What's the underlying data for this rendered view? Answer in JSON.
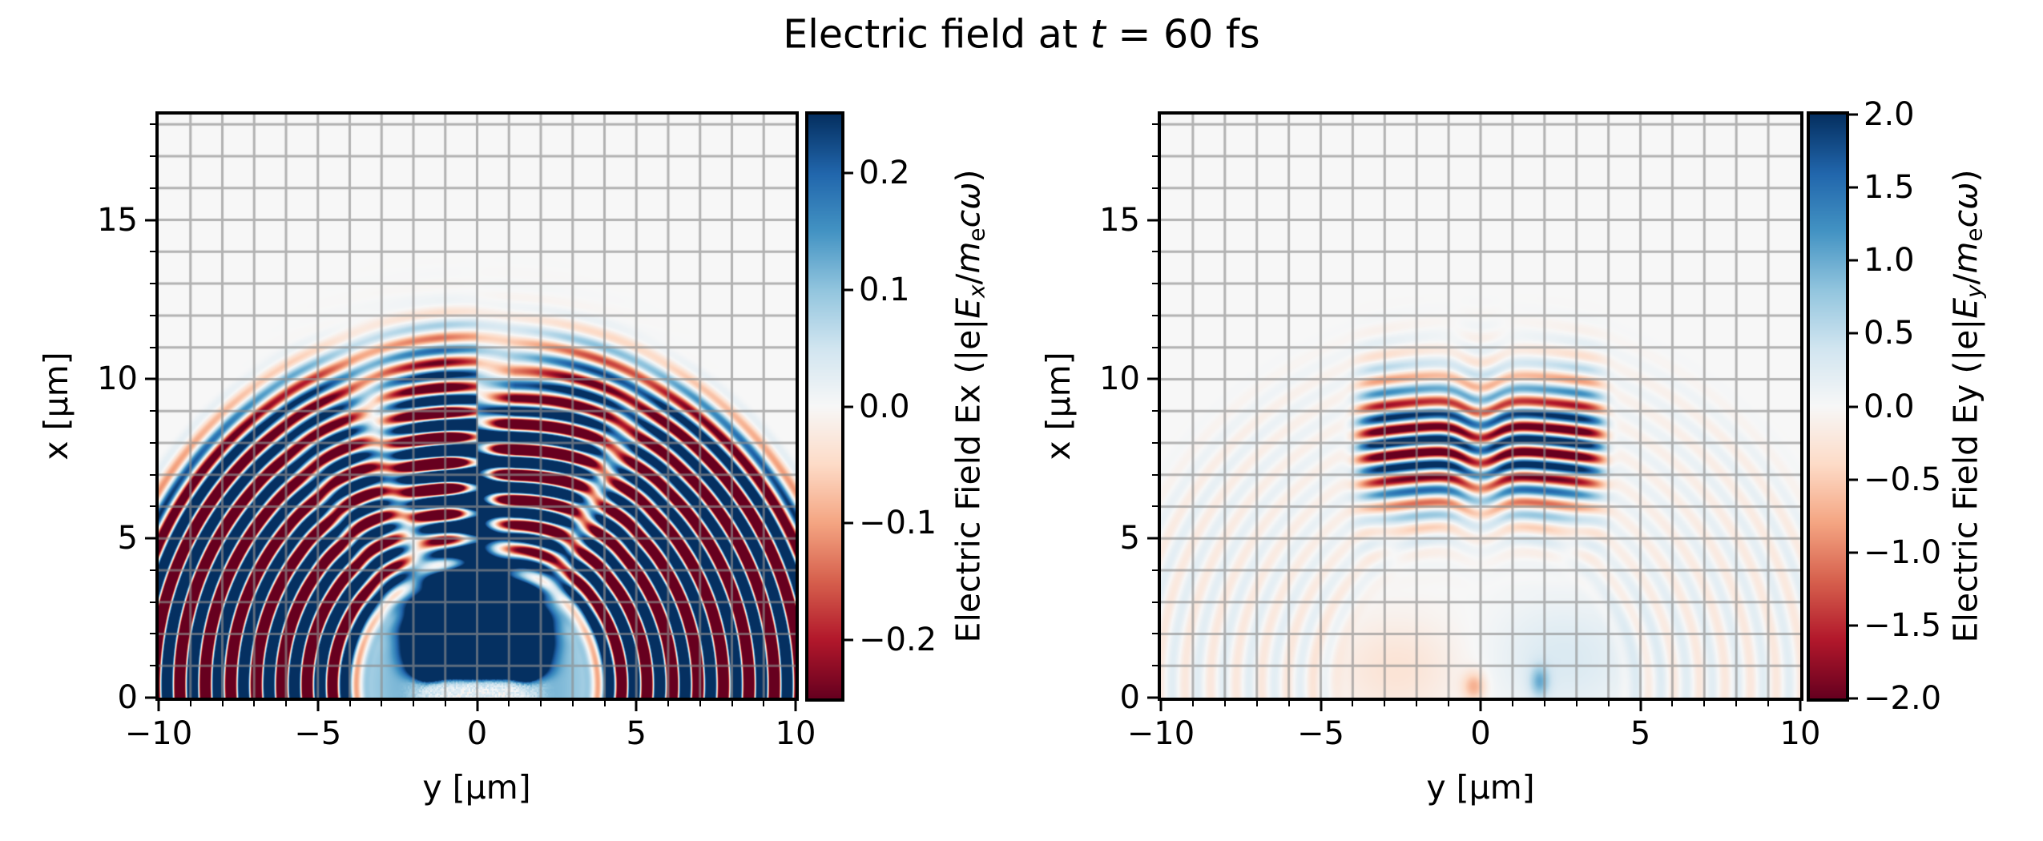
{
  "title": "Electric field at t = 60 fs",
  "title_segments": [
    {
      "t": "Electric field at "
    },
    {
      "t": "t",
      "i": 1
    },
    {
      "t": " = 60 fs"
    }
  ],
  "chart_data": {
    "type": "heatmap",
    "title": "Electric field at t = 60 fs",
    "time_fs": 60,
    "colormap": "RdBu",
    "colormap_stops": [
      "#67001f",
      "#b2182b",
      "#d6604d",
      "#f4a582",
      "#fddbc7",
      "#f7f7f7",
      "#d1e5f0",
      "#92c5de",
      "#4393c3",
      "#2166ac",
      "#053061"
    ],
    "grid": {
      "show": true,
      "step_um": 1,
      "color": "rgba(142,142,142,0.65)",
      "linewidth": 3
    },
    "x": {
      "label": "y [μm]",
      "range": [
        -10,
        10
      ],
      "major_ticks": [
        -10,
        -5,
        0,
        5,
        10
      ],
      "minor_step": 1,
      "decimals": 0
    },
    "y": {
      "label": "x [μm]",
      "range": [
        0,
        18.31
      ],
      "major_ticks": [
        0,
        5,
        10,
        15
      ],
      "minor_step": 1,
      "decimals": 0
    },
    "panels": [
      {
        "name": "Ex",
        "colorbar": {
          "label": "Electric Field Ex (|e|Ex/mecω)",
          "label_segments": [
            {
              "t": "Electric Field Ex (|e|"
            },
            {
              "t": "E",
              "i": 1
            },
            {
              "t": "x",
              "i": 1,
              "sub": 1
            },
            {
              "t": "/"
            },
            {
              "t": "m",
              "i": 1
            },
            {
              "t": "e",
              "sub": 1
            },
            {
              "t": "c",
              "i": 1
            },
            {
              "t": "ω",
              "i": 1
            },
            {
              "t": ")"
            }
          ],
          "vmin": -0.25,
          "vmax": 0.25,
          "ticks": [
            0.2,
            0.1,
            0.0,
            -0.1,
            -0.2
          ],
          "decimals": 1
        },
        "description": "Ex component: concentric semicircular wavefronts of radius ~3-12 μm expanding from the bottom-centre origin, strongly saturated away from the vertical axis; a standing-wave fringe column (|y| ≲ 4 μm, x ≈ 4-11 μm) with ~0.8 μm period and a phase flip across y = 0; a saturated positive (dark blue) lobe of radius ~2.5 μm at the bottom centre with a speckled light strip right at the boundary.",
        "field_model": {
          "kind": "ex",
          "wavelength_um": 0.8,
          "source": {
            "y": 0,
            "x": 0.4
          },
          "rings": {
            "r_rise": [
              3.3,
              4.8
            ],
            "r_fall": [
              10.0,
              12.4
            ],
            "base": 0.13,
            "aniso": 0.6,
            "phase": 0.5
          },
          "halo": {
            "r": 4.2,
            "amp": 0.13
          },
          "beam": {
            "cx": 7.3,
            "sx": 2.5,
            "sy": 3.1,
            "amp": 0.9,
            "curve": 0.025,
            "min_center": 0.3
          },
          "seam": {
            "cx": 6.3,
            "sx": 2.2,
            "sy": 0.6,
            "amp": 0.5
          },
          "blob": {
            "cy": 1.9,
            "r": 2.3,
            "amp": 0.55,
            "edge_x0": 0.35,
            "edge_w": 0.55
          },
          "dots": [
            {
              "y": -1.5,
              "x": 0.8,
              "s": 0.35,
              "amp": 0.4
            },
            {
              "y": 1.5,
              "x": 0.8,
              "s": 0.35,
              "amp": 0.4
            }
          ],
          "bottom_strip": {
            "sx": 0.55,
            "sy": 2.0,
            "lighten": 0.85,
            "noise": 0.07
          }
        }
      },
      {
        "name": "Ey",
        "colorbar": {
          "label": "Electric Field Ey (|e|Ey/mecω)",
          "label_segments": [
            {
              "t": "Electric Field Ey (|e|"
            },
            {
              "t": "E",
              "i": 1
            },
            {
              "t": "y",
              "i": 1,
              "sub": 1
            },
            {
              "t": "/"
            },
            {
              "t": "m",
              "i": 1
            },
            {
              "t": "e",
              "sub": 1
            },
            {
              "t": "c",
              "i": 1
            },
            {
              "t": "ω",
              "i": 1
            },
            {
              "t": ")"
            }
          ],
          "vmin": -2.0,
          "vmax": 2.0,
          "ticks": [
            2.0,
            1.5,
            1.0,
            0.5,
            0.0,
            -0.5,
            -1.0,
            -1.5,
            -2.0
          ],
          "decimals": 1
        },
        "description": "Ey component: two intense fringe patches (|y| ≈ 0.6-3.7 μm, x ≈ 5.5-10.5 μm) of horizontal red/blue stripes with ~0.8 μm period, phase-shifted by π through the central column; very faint circular wavefronts elsewhere and weak positive/negative smudges near the bottom boundary.",
        "field_model": {
          "kind": "ey",
          "wavelength_um": 0.8,
          "source": {
            "y": 0,
            "x": 0.4
          },
          "rings": {
            "r_rise": [
              4.0,
              5.2
            ],
            "r_fall": [
              10.5,
              12.6
            ],
            "base": 0.3,
            "aniso": 0.7,
            "amp": 0.22,
            "phase": 1.2
          },
          "patches": {
            "cx": 7.9,
            "sx": 1.9,
            "y_center": 2.05,
            "y_flat": 1.8,
            "amp": 2.6,
            "mid_sigma": 0.7,
            "mid_amp": 0.5,
            "mid_reduce": 0.35,
            "curve": 0.02,
            "phase": 0.3
          },
          "smudges": [
            {
              "y": -2.6,
              "x": 0.9,
              "wy": 2.0,
              "wx": 1.6,
              "amp": -0.28
            },
            {
              "y": 2.6,
              "x": 1.2,
              "wy": 2.2,
              "wx": 1.8,
              "amp": 0.3
            },
            {
              "y": -0.2,
              "x": 0.35,
              "wy": 0.35,
              "wx": 0.45,
              "amp": -0.7
            },
            {
              "y": 1.85,
              "x": 0.5,
              "wy": 0.3,
              "wx": 0.5,
              "amp": 0.8
            }
          ]
        }
      }
    ]
  }
}
